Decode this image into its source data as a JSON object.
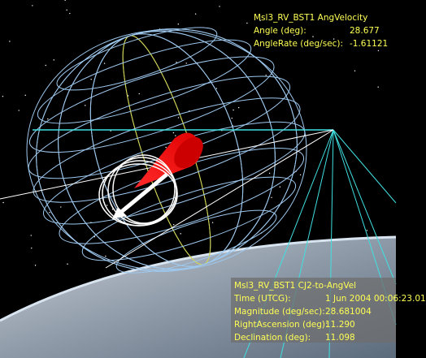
{
  "top_panel": {
    "title": "Msl3_RV_BST1 AngVelocity",
    "rows": [
      [
        "Angle (deg):",
        "28.677"
      ],
      [
        "AngleRate (deg/sec):",
        "-1.61121"
      ]
    ]
  },
  "bottom_panel": {
    "title": "Msl3_RV_BST1 CJ2-to-AngVel",
    "rows": [
      [
        "Time (UTCG):",
        "1 Jun 2004 00:06:23.01"
      ],
      [
        "Magnitude (deg/sec):",
        "28.681004"
      ],
      [
        "RightAscension (deg):",
        "11.290"
      ],
      [
        "Declination (deg):",
        "11.098"
      ]
    ]
  }
}
